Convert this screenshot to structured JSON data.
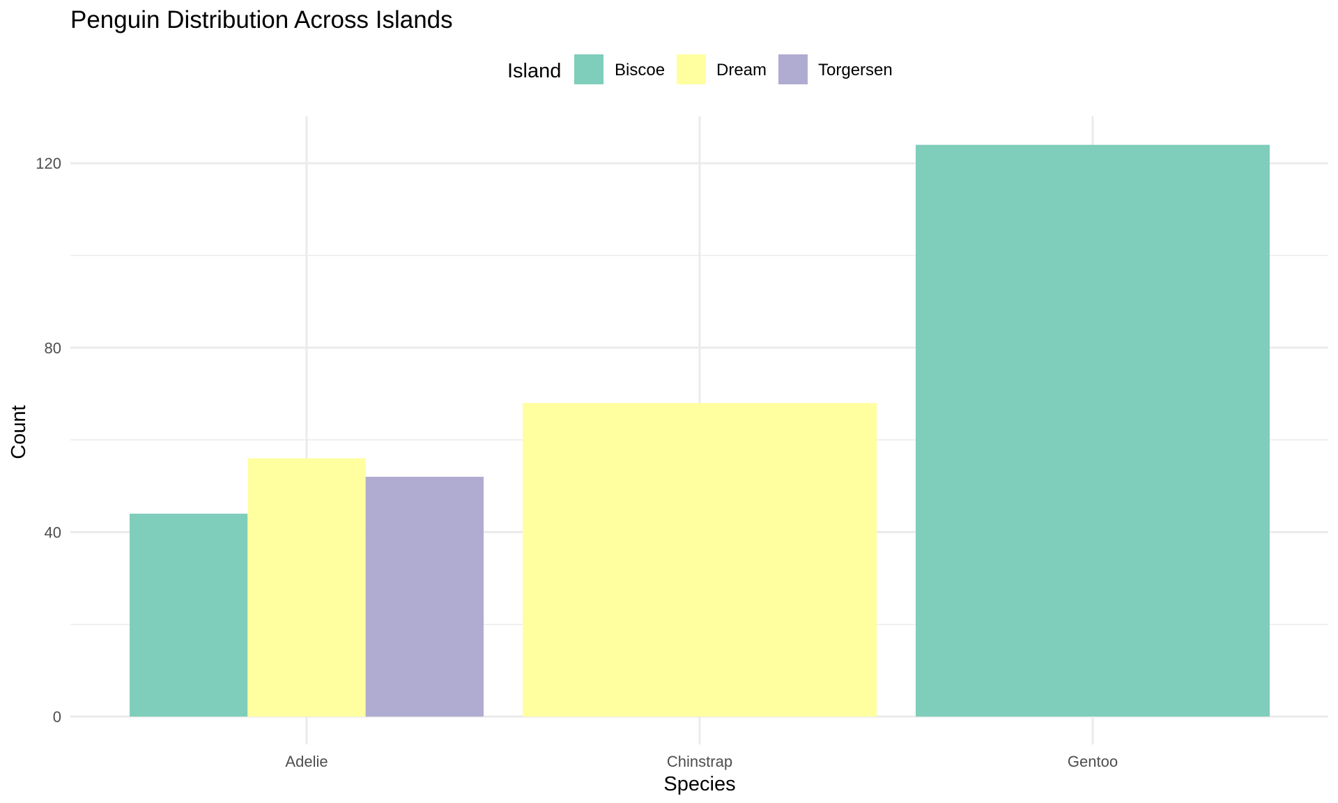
{
  "chart_data": {
    "type": "bar",
    "title": "Penguin Distribution Across Islands",
    "xlabel": "Species",
    "ylabel": "Count",
    "categories": [
      "Adelie",
      "Chinstrap",
      "Gentoo"
    ],
    "ylim": [
      0,
      130
    ],
    "yticks": [
      0,
      40,
      80,
      120
    ],
    "yticks_labels": [
      "0",
      "40",
      "80",
      "120"
    ],
    "legend": {
      "title": "Island",
      "placement": "top"
    },
    "grid": true,
    "series": [
      {
        "name": "Biscoe",
        "color": "#7fcdbb",
        "values": [
          44,
          null,
          124
        ]
      },
      {
        "name": "Dream",
        "color": "#ffffa0",
        "values": [
          56,
          68,
          null
        ]
      },
      {
        "name": "Torgersen",
        "color": "#b0abd1",
        "values": [
          52,
          null,
          null
        ]
      }
    ]
  }
}
